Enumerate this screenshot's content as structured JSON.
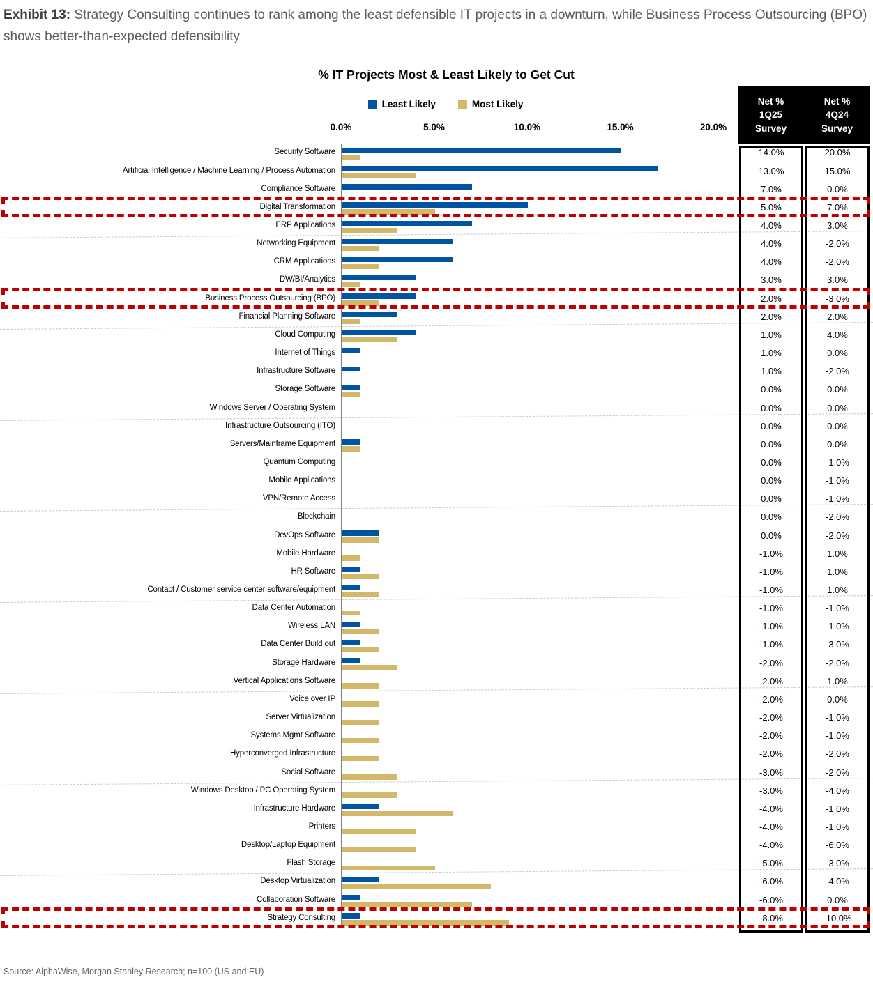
{
  "header": {
    "exhibit_label": "Exhibit 13:",
    "exhibit_title": "Strategy Consulting continues to rank among the least defensible IT projects in a downturn, while Business Process Outsourcing (BPO) shows better-than-expected defensibility"
  },
  "source": {
    "text": "Source: AlphaWise, Morgan Stanley Research; n=100 (US and EU)"
  },
  "chart_data": {
    "type": "bar",
    "orientation": "horizontal",
    "title": "% IT Projects Most & Least Likely to Get Cut",
    "legend": [
      "Least Likely",
      "Most Likely"
    ],
    "legend_position": "top",
    "x_ticks": [
      "0.0%",
      "5.0%",
      "10.0%",
      "15.0%",
      "20.0%"
    ],
    "xlim": [
      0,
      20.2
    ],
    "x_unit": "percent of respondents",
    "grid": "light gray dashed horizontal separators after every 5 categories",
    "colors": {
      "least_likely": "#0054A1",
      "most_likely": "#D2B96A",
      "highlight_box": "#C00000",
      "axis": "#7f7f7f"
    },
    "net_columns": {
      "col1": {
        "line1": "Net %",
        "line2": "1Q25",
        "line3": "Survey"
      },
      "col2": {
        "line1": "Net %",
        "line2": "4Q24",
        "line3": "Survey"
      }
    },
    "rows": [
      {
        "label": "Security Software",
        "least": 15.0,
        "most": 1.0,
        "net_1q25": "14.0%",
        "net_4q24": "20.0%",
        "highlight": false
      },
      {
        "label": "Artificial Intelligence / Machine Learning / Process Automation",
        "least": 17.0,
        "most": 4.0,
        "net_1q25": "13.0%",
        "net_4q24": "15.0%",
        "highlight": false
      },
      {
        "label": "Compliance Software",
        "least": 7.0,
        "most": 0,
        "net_1q25": "7.0%",
        "net_4q24": "0.0%",
        "highlight": false
      },
      {
        "label": "Digital Transformation",
        "least": 10.0,
        "most": 5.0,
        "net_1q25": "5.0%",
        "net_4q24": "7.0%",
        "highlight": true
      },
      {
        "label": "ERP Applications",
        "least": 7.0,
        "most": 3.0,
        "net_1q25": "4.0%",
        "net_4q24": "3.0%",
        "highlight": false
      },
      {
        "label": "Networking Equipment",
        "least": 6.0,
        "most": 2.0,
        "net_1q25": "4.0%",
        "net_4q24": "-2.0%",
        "highlight": false
      },
      {
        "label": "CRM Applications",
        "least": 6.0,
        "most": 2.0,
        "net_1q25": "4.0%",
        "net_4q24": "-2.0%",
        "highlight": false
      },
      {
        "label": "DW/BI/Analytics",
        "least": 4.0,
        "most": 1.0,
        "net_1q25": "3.0%",
        "net_4q24": "3.0%",
        "highlight": false
      },
      {
        "label": "Business Process Outsourcing (BPO)",
        "least": 4.0,
        "most": 2.0,
        "net_1q25": "2.0%",
        "net_4q24": "-3.0%",
        "highlight": true
      },
      {
        "label": "Financial Planning Software",
        "least": 3.0,
        "most": 1.0,
        "net_1q25": "2.0%",
        "net_4q24": "2.0%",
        "highlight": false
      },
      {
        "label": "Cloud Computing",
        "least": 4.0,
        "most": 3.0,
        "net_1q25": "1.0%",
        "net_4q24": "4.0%",
        "highlight": false
      },
      {
        "label": "Internet of Things",
        "least": 1.0,
        "most": 0,
        "net_1q25": "1.0%",
        "net_4q24": "0.0%",
        "highlight": false
      },
      {
        "label": "Infrastructure Software",
        "least": 1.0,
        "most": 0,
        "net_1q25": "1.0%",
        "net_4q24": "-2.0%",
        "highlight": false
      },
      {
        "label": "Storage Software",
        "least": 1.0,
        "most": 1.0,
        "net_1q25": "0.0%",
        "net_4q24": "0.0%",
        "highlight": false
      },
      {
        "label": "Windows Server / Operating System",
        "least": 0,
        "most": 0,
        "net_1q25": "0.0%",
        "net_4q24": "0.0%",
        "highlight": false
      },
      {
        "label": "Infrastructure Outsourcing (ITO)",
        "least": 0,
        "most": 0,
        "net_1q25": "0.0%",
        "net_4q24": "0.0%",
        "highlight": false
      },
      {
        "label": "Servers/Mainframe Equipment",
        "least": 1.0,
        "most": 1.0,
        "net_1q25": "0.0%",
        "net_4q24": "0.0%",
        "highlight": false
      },
      {
        "label": "Quantum Computing",
        "least": 0,
        "most": 0,
        "net_1q25": "0.0%",
        "net_4q24": "-1.0%",
        "highlight": false
      },
      {
        "label": "Mobile Applications",
        "least": 0,
        "most": 0,
        "net_1q25": "0.0%",
        "net_4q24": "-1.0%",
        "highlight": false
      },
      {
        "label": "VPN/Remote Access",
        "least": 0,
        "most": 0,
        "net_1q25": "0.0%",
        "net_4q24": "-1.0%",
        "highlight": false
      },
      {
        "label": "Blockchain",
        "least": 0,
        "most": 0,
        "net_1q25": "0.0%",
        "net_4q24": "-2.0%",
        "highlight": false
      },
      {
        "label": "DevOps Software",
        "least": 2.0,
        "most": 2.0,
        "net_1q25": "0.0%",
        "net_4q24": "-2.0%",
        "highlight": false
      },
      {
        "label": "Mobile Hardware",
        "least": 0,
        "most": 1.0,
        "net_1q25": "-1.0%",
        "net_4q24": "1.0%",
        "highlight": false
      },
      {
        "label": "HR Software",
        "least": 1.0,
        "most": 2.0,
        "net_1q25": "-1.0%",
        "net_4q24": "1.0%",
        "highlight": false
      },
      {
        "label": "Contact / Customer service center software/equipment",
        "least": 1.0,
        "most": 2.0,
        "net_1q25": "-1.0%",
        "net_4q24": "1.0%",
        "highlight": false
      },
      {
        "label": "Data Center Automation",
        "least": 0,
        "most": 1.0,
        "net_1q25": "-1.0%",
        "net_4q24": "-1.0%",
        "highlight": false
      },
      {
        "label": "Wireless LAN",
        "least": 1.0,
        "most": 2.0,
        "net_1q25": "-1.0%",
        "net_4q24": "-1.0%",
        "highlight": false
      },
      {
        "label": "Data Center Build out",
        "least": 1.0,
        "most": 2.0,
        "net_1q25": "-1.0%",
        "net_4q24": "-3.0%",
        "highlight": false
      },
      {
        "label": "Storage Hardware",
        "least": 1.0,
        "most": 3.0,
        "net_1q25": "-2.0%",
        "net_4q24": "-2.0%",
        "highlight": false
      },
      {
        "label": "Vertical Applications Software",
        "least": 0,
        "most": 2.0,
        "net_1q25": "-2.0%",
        "net_4q24": "1.0%",
        "highlight": false
      },
      {
        "label": "Voice over IP",
        "least": 0,
        "most": 2.0,
        "net_1q25": "-2.0%",
        "net_4q24": "0.0%",
        "highlight": false
      },
      {
        "label": "Server Virtualization",
        "least": 0,
        "most": 2.0,
        "net_1q25": "-2.0%",
        "net_4q24": "-1.0%",
        "highlight": false
      },
      {
        "label": "Systems Mgmt Software",
        "least": 0,
        "most": 2.0,
        "net_1q25": "-2.0%",
        "net_4q24": "-1.0%",
        "highlight": false
      },
      {
        "label": "Hyperconverged Infrastructure",
        "least": 0,
        "most": 2.0,
        "net_1q25": "-2.0%",
        "net_4q24": "-2.0%",
        "highlight": false
      },
      {
        "label": "Social Software",
        "least": 0,
        "most": 3.0,
        "net_1q25": "-3.0%",
        "net_4q24": "-2.0%",
        "highlight": false
      },
      {
        "label": "Windows Desktop / PC Operating System",
        "least": 0,
        "most": 3.0,
        "net_1q25": "-3.0%",
        "net_4q24": "-4.0%",
        "highlight": false
      },
      {
        "label": "Infrastructure Hardware",
        "least": 2.0,
        "most": 6.0,
        "net_1q25": "-4.0%",
        "net_4q24": "-1.0%",
        "highlight": false
      },
      {
        "label": "Printers",
        "least": 0,
        "most": 4.0,
        "net_1q25": "-4.0%",
        "net_4q24": "-1.0%",
        "highlight": false
      },
      {
        "label": "Desktop/Laptop Equipment",
        "least": 0,
        "most": 4.0,
        "net_1q25": "-4.0%",
        "net_4q24": "-6.0%",
        "highlight": false
      },
      {
        "label": "Flash Storage",
        "least": 0,
        "most": 5.0,
        "net_1q25": "-5.0%",
        "net_4q24": "-3.0%",
        "highlight": false
      },
      {
        "label": "Desktop Virtualization",
        "least": 2.0,
        "most": 8.0,
        "net_1q25": "-6.0%",
        "net_4q24": "-4.0%",
        "highlight": false
      },
      {
        "label": "Collaboration Software",
        "least": 1.0,
        "most": 7.0,
        "net_1q25": "-6.0%",
        "net_4q24": "0.0%",
        "highlight": false
      },
      {
        "label": "Strategy Consulting",
        "least": 1.0,
        "most": 9.0,
        "net_1q25": "-8.0%",
        "net_4q24": "-10.0%",
        "highlight": true
      }
    ]
  }
}
